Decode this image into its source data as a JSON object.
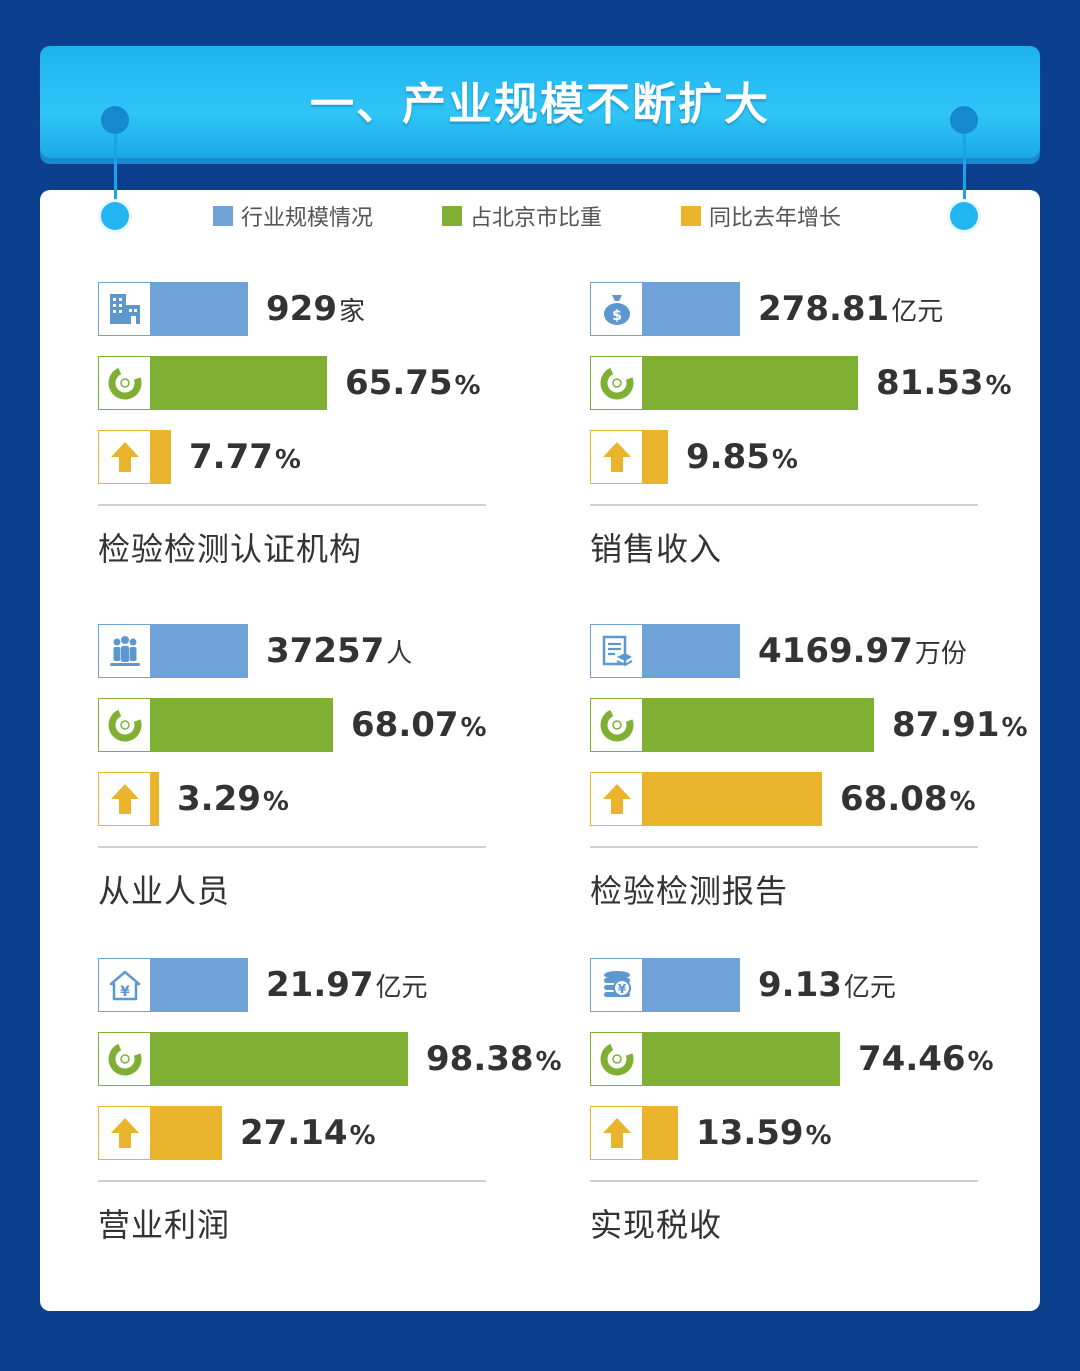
{
  "title": "一、产业规模不断扩大",
  "colors": {
    "scale": "#6fa3d8",
    "share": "#7fb034",
    "growth": "#eab42c"
  },
  "legend": [
    {
      "label": "行业规模情况",
      "color": "#6fa3d8"
    },
    {
      "label": "占北京市比重",
      "color": "#7fb034"
    },
    {
      "label": "同比去年增长",
      "color": "#eab42c"
    }
  ],
  "chart_data": {
    "type": "bar",
    "categories": [
      "检验检测认证机构",
      "销售收入",
      "从业人员",
      "检验检测报告",
      "营业利润",
      "实现税收"
    ],
    "series": [
      {
        "name": "行业规模情况",
        "values": [
          929,
          278.81,
          37257,
          4169.97,
          21.97,
          9.13
        ],
        "units": [
          "家",
          "亿元",
          "人",
          "万份",
          "亿元",
          "亿元"
        ]
      },
      {
        "name": "占北京市比重",
        "values": [
          65.75,
          81.53,
          68.07,
          87.91,
          98.38,
          74.46
        ],
        "unit": "%"
      },
      {
        "name": "同比去年增长",
        "values": [
          7.77,
          9.85,
          3.29,
          68.08,
          27.14,
          13.59
        ],
        "unit": "%"
      }
    ]
  },
  "panels": [
    {
      "category": "检验检测认证机构",
      "icon": "building-icon",
      "scale": {
        "value": "929",
        "unit": "家"
      },
      "share": {
        "value": "65.75",
        "unit": "%"
      },
      "growth": {
        "value": "7.77",
        "unit": "%"
      }
    },
    {
      "category": "销售收入",
      "icon": "money-bag-icon",
      "scale": {
        "value": "278.81",
        "unit": "亿元"
      },
      "share": {
        "value": "81.53",
        "unit": "%"
      },
      "growth": {
        "value": "9.85",
        "unit": "%"
      }
    },
    {
      "category": "从业人员",
      "icon": "people-icon",
      "scale": {
        "value": "37257",
        "unit": "人"
      },
      "share": {
        "value": "68.07",
        "unit": "%"
      },
      "growth": {
        "value": "3.29",
        "unit": "%"
      }
    },
    {
      "category": "检验检测报告",
      "icon": "report-icon",
      "scale": {
        "value": "4169.97",
        "unit": "万份"
      },
      "share": {
        "value": "87.91",
        "unit": "%"
      },
      "growth": {
        "value": "68.08",
        "unit": "%"
      }
    },
    {
      "category": "营业利润",
      "icon": "house-yuan-icon",
      "scale": {
        "value": "21.97",
        "unit": "亿元"
      },
      "share": {
        "value": "98.38",
        "unit": "%"
      },
      "growth": {
        "value": "27.14",
        "unit": "%"
      }
    },
    {
      "category": "实现税收",
      "icon": "coin-stack-icon",
      "scale": {
        "value": "9.13",
        "unit": "亿元"
      },
      "share": {
        "value": "74.46",
        "unit": "%"
      },
      "growth": {
        "value": "13.59",
        "unit": "%"
      }
    }
  ]
}
